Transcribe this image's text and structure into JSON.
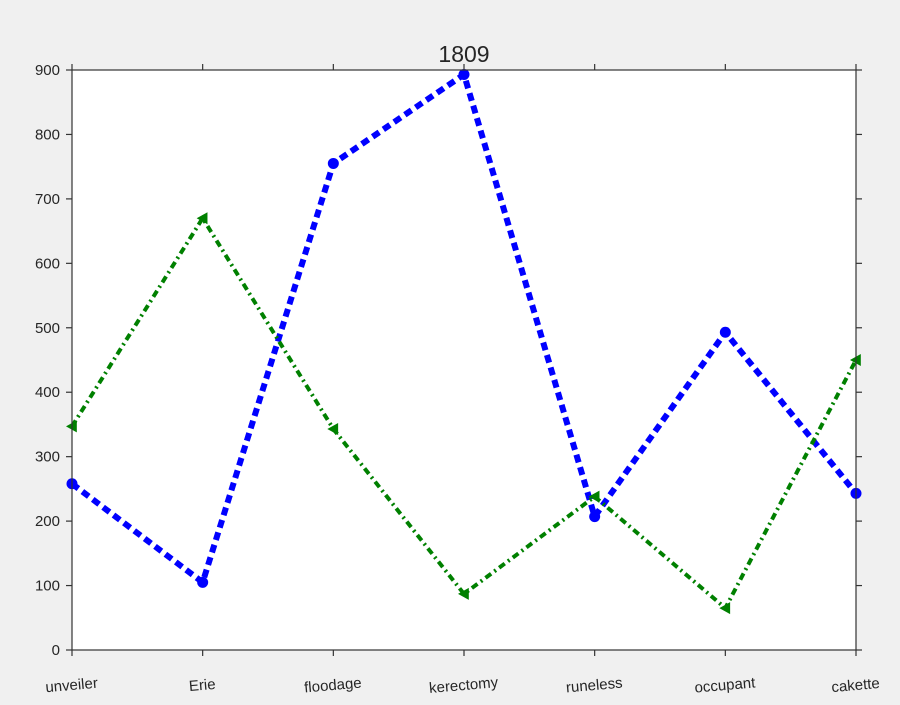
{
  "chart_data": {
    "type": "line",
    "title": "1809",
    "xlabel": "",
    "ylabel": "",
    "categories": [
      "unveiler",
      "Erie",
      "floodage",
      "kerectomy",
      "runeless",
      "occupant",
      "cakette"
    ],
    "ylim": [
      0,
      900
    ],
    "yticks": [
      0,
      100,
      200,
      300,
      400,
      500,
      600,
      700,
      800,
      900
    ],
    "grid": false,
    "legend": "none",
    "series": [
      {
        "color": "#0000ff",
        "line_style": "dashed",
        "marker": "circle",
        "values": [
          258,
          105,
          755,
          893,
          207,
          493,
          243
        ]
      },
      {
        "color": "#008000",
        "line_style": "dash-dot",
        "marker": "triangle-left",
        "values": [
          347,
          670,
          343,
          87,
          238,
          65,
          450
        ]
      }
    ]
  }
}
